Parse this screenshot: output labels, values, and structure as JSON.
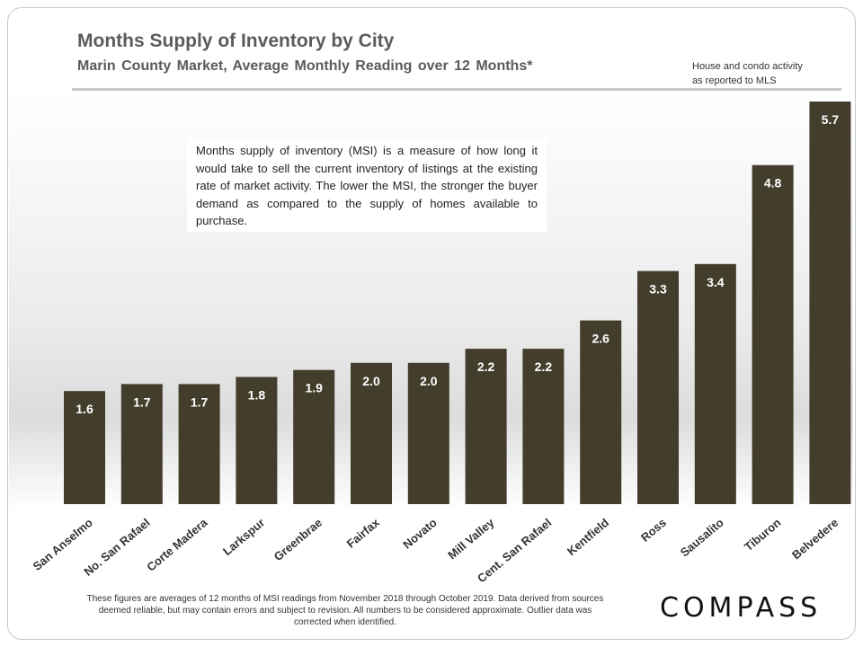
{
  "header": {
    "title": "Months Supply of Inventory by City",
    "subtitle": "Marin County Market, Average Monthly Reading over 12 Months*",
    "source_line1": "House and condo activity",
    "source_line2": "as reported to MLS"
  },
  "definition": "Months supply of inventory (MSI) is a measure of how long it would take to sell the current inventory of listings at the existing rate of market activity. The lower the MSI, the stronger the buyer demand as compared to the supply of homes available to purchase.",
  "footnote": "These figures are averages of 12 months of MSI readings from November 2018 through October 2019. Data derived from sources deemed reliable, but may contain errors and subject to revision. All numbers to be considered approximate. Outlier data was corrected when identified.",
  "logo": "COMPASS",
  "colors": {
    "bar": "#433d2c",
    "label": "#ffffff",
    "category": "#333333",
    "background_gradient": "#e6e6e6"
  },
  "chart_data": {
    "type": "bar",
    "title": "Months Supply of Inventory by City",
    "subtitle": "Marin County Market, Average Monthly Reading over 12 Months*",
    "categories": [
      "San Anselmo",
      "No. San Rafael",
      "Corte Madera",
      "Larkspur",
      "Greenbrae",
      "Fairfax",
      "Novato",
      "Mill Valley",
      "Cent. San Rafael",
      "Kentfield",
      "Ross",
      "Sausalito",
      "Tiburon",
      "Belvedere"
    ],
    "values": [
      1.6,
      1.7,
      1.7,
      1.8,
      1.9,
      2.0,
      2.0,
      2.2,
      2.2,
      2.6,
      3.3,
      3.4,
      4.8,
      5.7
    ],
    "data_labels": [
      "1.6",
      "1.7",
      "1.7",
      "1.8",
      "1.9",
      "2.0",
      "2.0",
      "2.2",
      "2.2",
      "2.6",
      "3.3",
      "3.4",
      "4.8",
      "5.7"
    ],
    "xlabel": "",
    "ylabel": "",
    "ylim": [
      0,
      5.7
    ],
    "grid": false,
    "legend": "none"
  }
}
